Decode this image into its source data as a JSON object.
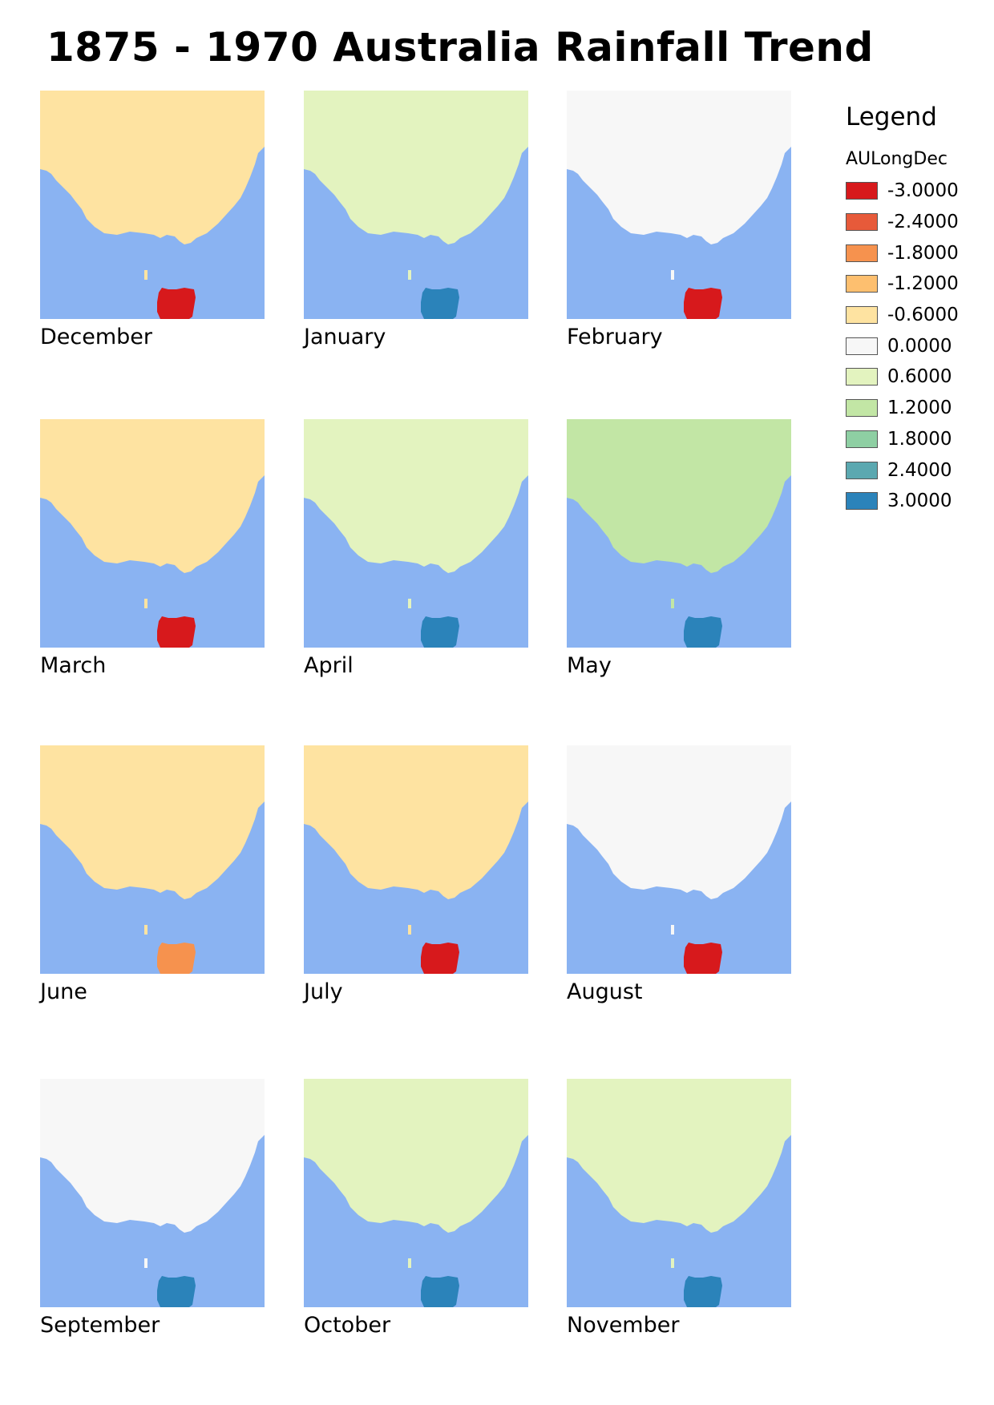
{
  "title": "1875 - 1970 Australia Rainfall Trend",
  "legend": {
    "title": "Legend",
    "layer": "AULongDec",
    "items": [
      {
        "label": "-3.0000",
        "value": -3.0,
        "color": "#d7191c"
      },
      {
        "label": "-2.4000",
        "value": -2.4,
        "color": "#e75a3a"
      },
      {
        "label": "-1.8000",
        "value": -1.8,
        "color": "#f6924e"
      },
      {
        "label": "-1.2000",
        "value": -1.2,
        "color": "#fdbf6f"
      },
      {
        "label": "-0.6000",
        "value": -0.6,
        "color": "#fee3a1"
      },
      {
        "label": "0.0000",
        "value": 0.0,
        "color": "#f7f7f7"
      },
      {
        "label": "0.6000",
        "value": 0.6,
        "color": "#e3f3bf"
      },
      {
        "label": "1.2000",
        "value": 1.2,
        "color": "#c2e6a5"
      },
      {
        "label": "1.8000",
        "value": 1.8,
        "color": "#8ecfa3"
      },
      {
        "label": "2.4000",
        "value": 2.4,
        "color": "#5ba8b0"
      },
      {
        "label": "3.0000",
        "value": 3.0,
        "color": "#2b83ba"
      }
    ]
  },
  "colors": {
    "ocean": "#8ab3f2"
  },
  "maps": [
    {
      "month": "December",
      "mainland": -0.4,
      "tasmania": -3.0
    },
    {
      "month": "January",
      "mainland": 0.6,
      "tasmania": 3.0
    },
    {
      "month": "February",
      "mainland": 0.0,
      "tasmania": -3.0
    },
    {
      "month": "March",
      "mainland": -0.4,
      "tasmania": -3.0
    },
    {
      "month": "April",
      "mainland": 0.5,
      "tasmania": 3.0
    },
    {
      "month": "May",
      "mainland": 0.9,
      "tasmania": 3.0
    },
    {
      "month": "June",
      "mainland": -0.7,
      "tasmania": -1.8
    },
    {
      "month": "July",
      "mainland": -0.8,
      "tasmania": -3.0
    },
    {
      "month": "August",
      "mainland": 0.2,
      "tasmania": -3.0
    },
    {
      "month": "September",
      "mainland": 0.3,
      "tasmania": 3.0
    },
    {
      "month": "October",
      "mainland": 0.5,
      "tasmania": 3.0
    },
    {
      "month": "November",
      "mainland": 0.7,
      "tasmania": 3.0
    }
  ]
}
